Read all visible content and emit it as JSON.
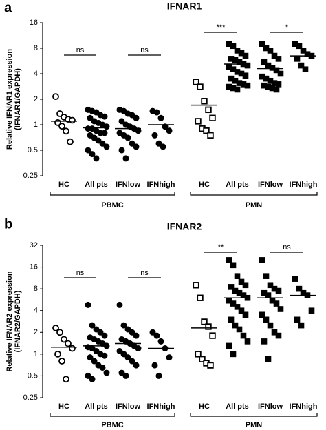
{
  "chart_data": [
    {
      "type": "strip",
      "panel": "a",
      "title": "IFNAR1",
      "ylabel": [
        "Relative  IFNAR1 expression",
        "(IFNAR1/GAPDH)"
      ],
      "log_scale": true,
      "ylim": [
        0.25,
        16
      ],
      "yticks": [
        0.25,
        0.5,
        1,
        2,
        4,
        8,
        16
      ],
      "categories": [
        "HC",
        "All pts",
        "IFNlow",
        "IFNhigh",
        "HC",
        "All pts",
        "IFNlow",
        "IFNhigh"
      ],
      "markers": [
        "open-circle",
        "circle",
        "circle",
        "circle",
        "open-square",
        "square",
        "square",
        "square"
      ],
      "color": "#000000",
      "groups": [
        {
          "name": "PBMC",
          "span": [
            0,
            3
          ]
        },
        {
          "name": "PMN",
          "span": [
            4,
            7
          ]
        }
      ],
      "values": [
        [
          2.15,
          1.35,
          1.23,
          1.16,
          1.13,
          1.06,
          0.96,
          0.84,
          0.63
        ],
        [
          1.5,
          1.45,
          1.4,
          1.3,
          1.25,
          1.2,
          1.1,
          1.05,
          1.0,
          0.95,
          0.9,
          0.9,
          0.85,
          0.8,
          0.8,
          0.75,
          0.7,
          0.65,
          0.6,
          0.55,
          0.5,
          0.45,
          0.4
        ],
        [
          1.5,
          1.45,
          1.35,
          1.3,
          1.2,
          1.1,
          1.0,
          0.95,
          0.9,
          0.85,
          0.8,
          0.75,
          0.7,
          0.6,
          0.55,
          0.5,
          0.4
        ],
        [
          1.45,
          1.4,
          1.2,
          0.95,
          0.85,
          0.75,
          0.6,
          0.55
        ],
        [
          3.2,
          2.8,
          1.9,
          1.5,
          1.2,
          1.1,
          0.9,
          0.85,
          0.75
        ],
        [
          9,
          8.5,
          7.5,
          7,
          6.5,
          6,
          5.8,
          5.5,
          5.2,
          5,
          4.8,
          4.5,
          4.2,
          4,
          3.8,
          3.5,
          3.3,
          3.1,
          3,
          2.9,
          2.8,
          2.7,
          2.6
        ],
        [
          9,
          8,
          7.5,
          6.5,
          6,
          5.5,
          5,
          4.7,
          4.4,
          4,
          3.7,
          3.5,
          3.3,
          3.1,
          3,
          2.9,
          2.8,
          2.7,
          2.6
        ],
        [
          9,
          8.5,
          7.5,
          6.8,
          6.5,
          6,
          5,
          4.5
        ]
      ],
      "medians": [
        1.1,
        0.92,
        0.9,
        1.0,
        1.7,
        5.2,
        4.6,
        6.5
      ],
      "annotations": [
        {
          "text": "ns",
          "span": [
            0,
            1
          ]
        },
        {
          "text": "ns",
          "span": [
            2,
            3
          ]
        },
        {
          "text": "***",
          "span": [
            4,
            5
          ]
        },
        {
          "text": "*",
          "span": [
            6,
            7
          ]
        }
      ]
    },
    {
      "type": "strip",
      "panel": "b",
      "title": "IFNAR2",
      "ylabel": [
        "Relative  IFNAR2 expression",
        "(IFNAR2/GAPDH)"
      ],
      "log_scale": true,
      "ylim": [
        0.25,
        32
      ],
      "yticks": [
        0.25,
        0.5,
        1,
        2,
        4,
        8,
        16,
        32
      ],
      "categories": [
        "HC",
        "All pts",
        "IFNlow",
        "IFNhigh",
        "HC",
        "All pts",
        "IFNlow",
        "IFNhigh"
      ],
      "markers": [
        "open-circle",
        "circle",
        "circle",
        "circle",
        "open-square",
        "square",
        "square",
        "square"
      ],
      "color": "#000000",
      "groups": [
        {
          "name": "PBMC",
          "span": [
            0,
            3
          ]
        },
        {
          "name": "PMN",
          "span": [
            4,
            7
          ]
        }
      ],
      "values": [
        [
          2.3,
          2.0,
          1.6,
          1.4,
          1.2,
          1.0,
          0.8,
          0.45
        ],
        [
          4.8,
          2.5,
          2.2,
          2.0,
          1.8,
          1.7,
          1.6,
          1.5,
          1.4,
          1.3,
          1.25,
          1.2,
          1.1,
          1.0,
          0.95,
          0.9,
          0.8,
          0.7,
          0.65,
          0.55,
          0.5,
          0.45
        ],
        [
          4.8,
          2.5,
          2.2,
          2.0,
          1.8,
          1.6,
          1.5,
          1.4,
          1.3,
          1.2,
          1.1,
          1.0,
          0.9,
          0.8,
          0.7,
          0.55,
          0.5
        ],
        [
          2.0,
          1.8,
          1.5,
          1.2,
          0.9,
          0.7,
          0.5
        ],
        [
          9,
          6,
          2.8,
          2.4,
          1.8,
          1.0,
          0.85,
          0.75,
          0.7
        ],
        [
          20,
          17,
          12,
          10,
          9,
          8.5,
          7.5,
          7,
          6.5,
          6,
          5.5,
          5,
          4.5,
          4,
          3.5,
          3,
          2.5,
          2.2,
          1.8,
          1.5,
          1.3,
          1.0
        ],
        [
          20,
          12,
          9,
          8,
          7.5,
          7,
          6.5,
          5.5,
          5,
          4.2,
          3.5,
          3,
          2.5,
          2,
          1.8,
          1.5,
          0.85
        ],
        [
          11,
          8,
          7,
          6.5,
          4,
          3,
          2.5
        ]
      ],
      "medians": [
        1.25,
        1.3,
        1.4,
        1.2,
        2.3,
        6,
        6,
        6.5
      ],
      "annotations": [
        {
          "text": "ns",
          "span": [
            0,
            1
          ]
        },
        {
          "text": "ns",
          "span": [
            2,
            3
          ]
        },
        {
          "text": "**",
          "span": [
            4,
            5
          ]
        },
        {
          "text": "ns",
          "span": [
            6,
            7
          ]
        }
      ]
    }
  ]
}
